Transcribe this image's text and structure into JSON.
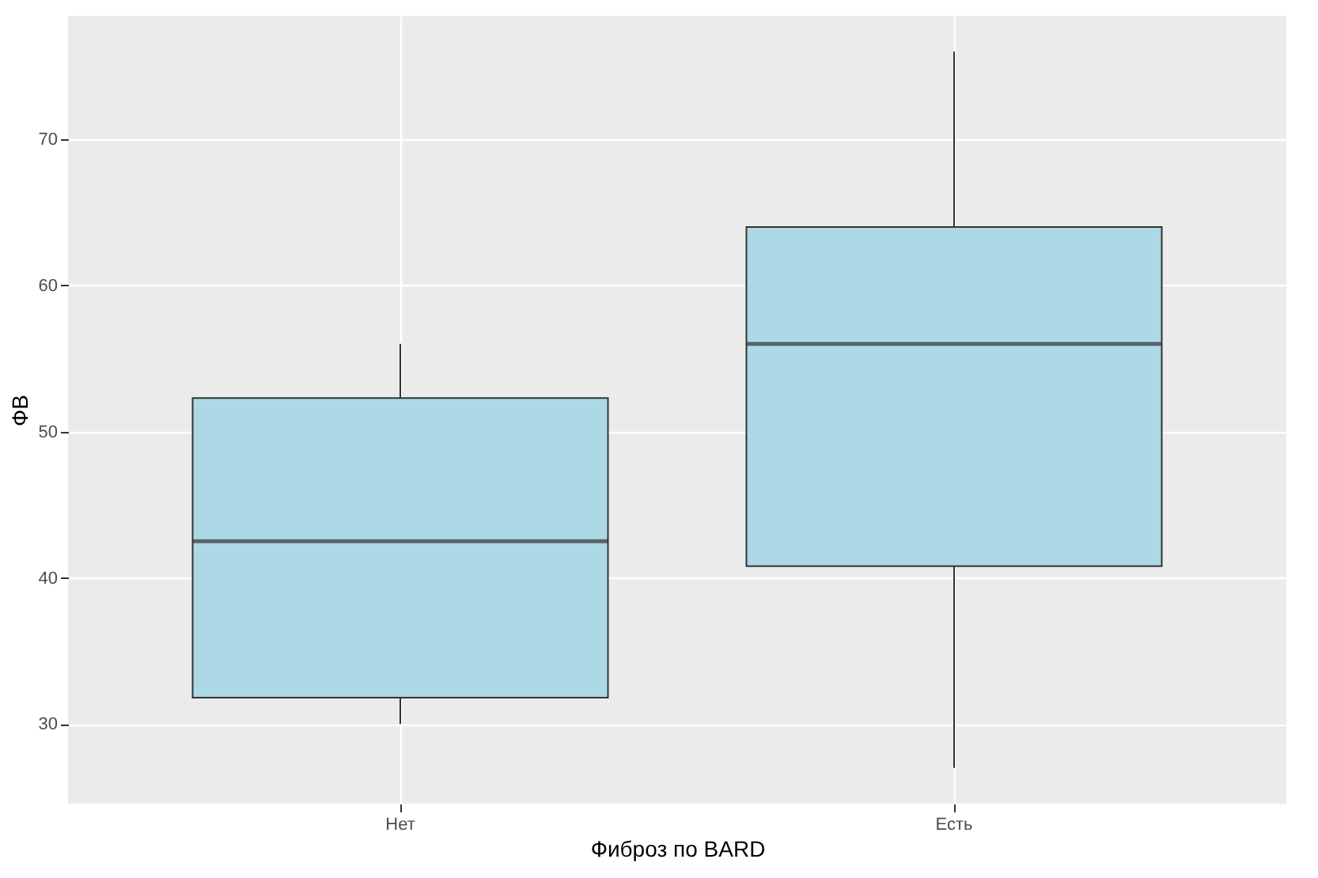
{
  "chart_data": {
    "type": "box",
    "xlabel": "Фиброз по BARD",
    "ylabel": "ФВ",
    "categories": [
      "Нет",
      "Есть"
    ],
    "boxes": [
      {
        "low": 30,
        "q1": 31.8,
        "median": 42.5,
        "q3": 52.3,
        "high": 56
      },
      {
        "low": 27,
        "q1": 40.8,
        "median": 56,
        "q3": 64,
        "high": 76
      }
    ],
    "color": "#add8e6",
    "ylim": [
      24.55,
      78.45
    ],
    "yticks": [
      30,
      40,
      50,
      60,
      70
    ],
    "grid": true
  }
}
